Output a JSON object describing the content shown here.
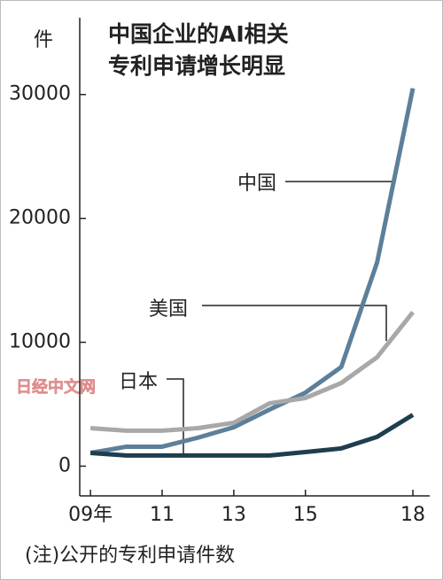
{
  "chart_data": {
    "type": "line",
    "title": [
      "中国企业的AI相关",
      "专利申请增长明显"
    ],
    "y_unit": "件",
    "note": "(注)公开的专利申请件数",
    "watermark": "日经中文网",
    "x": [
      2009,
      2010,
      2011,
      2012,
      2013,
      2014,
      2015,
      2016,
      2017,
      2018
    ],
    "series": [
      {
        "name": "中国",
        "color": "#5d7f99",
        "values": [
          1070,
          1570,
          1570,
          2300,
          3140,
          4570,
          5930,
          8000,
          16430,
          30500
        ]
      },
      {
        "name": "美国",
        "color": "#a8a8a8",
        "values": [
          3070,
          2860,
          2860,
          3070,
          3500,
          5070,
          5500,
          6710,
          8790,
          12430
        ]
      },
      {
        "name": "日本",
        "color": "#1e3e4e",
        "values": [
          1070,
          860,
          860,
          860,
          860,
          860,
          1140,
          1430,
          2360,
          4140
        ]
      }
    ],
    "xlim": [
      2008.7,
      2018.47
    ],
    "xticks": [
      {
        "value": 2009,
        "label": "09年"
      },
      {
        "value": 2011,
        "label": "11"
      },
      {
        "value": 2013,
        "label": "13"
      },
      {
        "value": 2015,
        "label": "15"
      },
      {
        "value": 2018,
        "label": "18"
      }
    ],
    "ylim": [
      -2400,
      36200
    ],
    "yticks": [
      0,
      10000,
      20000,
      30000
    ]
  }
}
